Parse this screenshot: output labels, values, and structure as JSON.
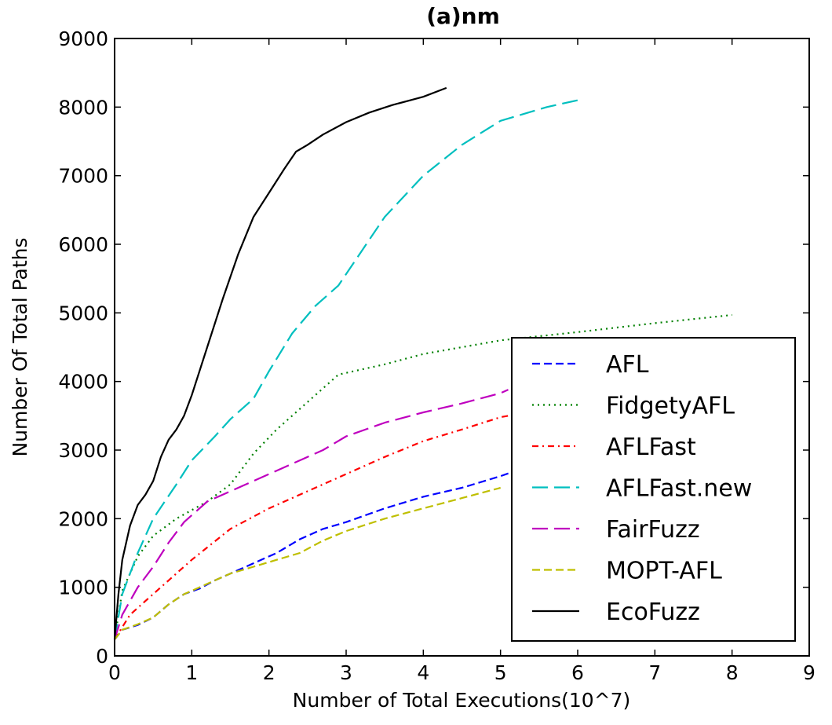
{
  "chart_data": {
    "type": "line",
    "title": "(a)nm",
    "xlabel": "Number of Total Executions(10^7)",
    "ylabel": "Number Of Total Paths",
    "xlim": [
      0,
      9
    ],
    "ylim": [
      0,
      9000
    ],
    "x_ticks": [
      "0",
      "1",
      "2",
      "3",
      "4",
      "5",
      "6",
      "7",
      "8",
      "9"
    ],
    "y_ticks": [
      "0",
      "1000",
      "2000",
      "3000",
      "4000",
      "5000",
      "6000",
      "7000",
      "8000",
      "9000"
    ],
    "grid": false,
    "legend_position": "lower-right",
    "series": [
      {
        "name": "AFL",
        "color": "#0000ff",
        "dash": "dashed",
        "x": [
          0,
          0.1,
          0.3,
          0.5,
          0.7,
          0.9,
          1.1,
          1.3,
          1.5,
          1.8,
          2.1,
          2.4,
          2.7,
          3.0,
          3.5,
          4.0,
          4.5,
          5.0,
          5.2
        ],
        "y": [
          240,
          380,
          450,
          560,
          750,
          900,
          980,
          1100,
          1200,
          1350,
          1500,
          1700,
          1850,
          1950,
          2150,
          2320,
          2450,
          2620,
          2700
        ]
      },
      {
        "name": "FidgetyAFL",
        "color": "#008000",
        "dash": "dotted",
        "x": [
          0,
          0.1,
          0.3,
          0.5,
          0.8,
          1.2,
          1.5,
          1.8,
          2.1,
          2.5,
          2.9,
          3.5,
          4.0,
          4.5,
          5.0,
          6.0,
          7.0,
          8.0
        ],
        "y": [
          240,
          950,
          1450,
          1750,
          2000,
          2250,
          2500,
          2950,
          3300,
          3700,
          4100,
          4250,
          4400,
          4500,
          4600,
          4720,
          4850,
          4970
        ]
      },
      {
        "name": "AFLFast",
        "color": "#ff0000",
        "dash": "dashdot",
        "x": [
          0,
          0.2,
          0.4,
          0.7,
          1.0,
          1.5,
          2.0,
          2.5,
          3.0,
          3.5,
          4.0,
          4.5,
          5.0,
          5.2
        ],
        "y": [
          240,
          600,
          800,
          1100,
          1400,
          1850,
          2150,
          2400,
          2650,
          2900,
          3130,
          3300,
          3480,
          3520
        ]
      },
      {
        "name": "AFLFast.new",
        "color": "#00bfbf",
        "dash": "longdash",
        "x": [
          0,
          0.1,
          0.3,
          0.5,
          0.8,
          1.0,
          1.3,
          1.5,
          1.8,
          2.0,
          2.3,
          2.6,
          2.9,
          3.2,
          3.5,
          4.0,
          4.5,
          5.0,
          5.3,
          5.6,
          6.0
        ],
        "y": [
          240,
          900,
          1500,
          2000,
          2500,
          2850,
          3200,
          3450,
          3750,
          4150,
          4700,
          5100,
          5400,
          5900,
          6400,
          7000,
          7450,
          7800,
          7900,
          8000,
          8100
        ]
      },
      {
        "name": "FairFuzz",
        "color": "#bf00bf",
        "dash": "longdash",
        "x": [
          0,
          0.1,
          0.3,
          0.5,
          0.7,
          0.9,
          1.2,
          1.5,
          1.8,
          2.1,
          2.4,
          2.7,
          3.0,
          3.5,
          4.0,
          4.5,
          5.0,
          5.1
        ],
        "y": [
          240,
          600,
          1000,
          1300,
          1650,
          1950,
          2250,
          2400,
          2550,
          2700,
          2850,
          3000,
          3200,
          3400,
          3550,
          3680,
          3830,
          3880
        ]
      },
      {
        "name": "MOPT-AFL",
        "color": "#bfbf00",
        "dash": "dashed",
        "x": [
          0,
          0.1,
          0.3,
          0.5,
          0.7,
          0.9,
          1.1,
          1.3,
          1.5,
          1.8,
          2.1,
          2.4,
          2.7,
          3.0,
          3.5,
          4.0,
          4.5,
          5.0
        ],
        "y": [
          240,
          380,
          460,
          560,
          750,
          900,
          1000,
          1100,
          1200,
          1300,
          1400,
          1500,
          1680,
          1820,
          2000,
          2150,
          2300,
          2450
        ]
      },
      {
        "name": "EcoFuzz",
        "color": "#000000",
        "dash": "solid",
        "x": [
          0,
          0.05,
          0.1,
          0.2,
          0.3,
          0.4,
          0.5,
          0.6,
          0.7,
          0.8,
          0.9,
          1.0,
          1.2,
          1.4,
          1.6,
          1.8,
          2.0,
          2.2,
          2.35,
          2.5,
          2.7,
          3.0,
          3.3,
          3.6,
          4.0,
          4.3
        ],
        "y": [
          240,
          900,
          1400,
          1900,
          2200,
          2350,
          2550,
          2900,
          3150,
          3300,
          3500,
          3800,
          4500,
          5200,
          5850,
          6400,
          6750,
          7100,
          7350,
          7450,
          7600,
          7780,
          7920,
          8030,
          8150,
          8280
        ]
      }
    ]
  }
}
